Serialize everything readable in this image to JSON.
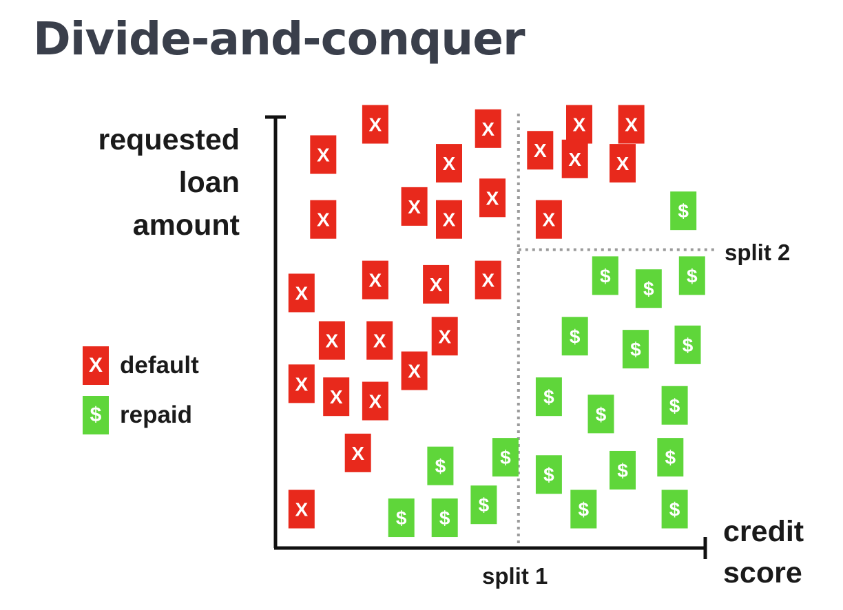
{
  "title": "Divide-and-conquer",
  "axes": {
    "y_label_lines": [
      "requested",
      "loan",
      "amount"
    ],
    "x_label_lines": [
      "credit",
      "score"
    ]
  },
  "splits": {
    "split1_label": "split 1",
    "split2_label": "split 2"
  },
  "legend": {
    "default": {
      "glyph": "X",
      "label": "default",
      "color": "#e8291c"
    },
    "repaid": {
      "glyph": "$",
      "label": "repaid",
      "color": "#5fd63a"
    }
  },
  "chart_data": {
    "type": "scatter",
    "xlim": [
      0,
      1
    ],
    "ylim": [
      0,
      1
    ],
    "split1_x": 0.56,
    "split2_y": 0.69,
    "categories": [
      "default",
      "repaid"
    ],
    "points": [
      {
        "c": "default",
        "x": 0.11,
        "y": 0.91
      },
      {
        "c": "default",
        "x": 0.23,
        "y": 0.98
      },
      {
        "c": "default",
        "x": 0.4,
        "y": 0.89
      },
      {
        "c": "default",
        "x": 0.49,
        "y": 0.97
      },
      {
        "c": "default",
        "x": 0.32,
        "y": 0.79
      },
      {
        "c": "default",
        "x": 0.4,
        "y": 0.76
      },
      {
        "c": "default",
        "x": 0.5,
        "y": 0.81
      },
      {
        "c": "default",
        "x": 0.11,
        "y": 0.76
      },
      {
        "c": "default",
        "x": 0.06,
        "y": 0.59
      },
      {
        "c": "default",
        "x": 0.23,
        "y": 0.62
      },
      {
        "c": "default",
        "x": 0.37,
        "y": 0.61
      },
      {
        "c": "default",
        "x": 0.49,
        "y": 0.62
      },
      {
        "c": "default",
        "x": 0.13,
        "y": 0.48
      },
      {
        "c": "default",
        "x": 0.24,
        "y": 0.48
      },
      {
        "c": "default",
        "x": 0.39,
        "y": 0.49
      },
      {
        "c": "default",
        "x": 0.32,
        "y": 0.41
      },
      {
        "c": "default",
        "x": 0.06,
        "y": 0.38
      },
      {
        "c": "default",
        "x": 0.14,
        "y": 0.35
      },
      {
        "c": "default",
        "x": 0.23,
        "y": 0.34
      },
      {
        "c": "default",
        "x": 0.19,
        "y": 0.22
      },
      {
        "c": "default",
        "x": 0.06,
        "y": 0.09
      },
      {
        "c": "default",
        "x": 0.61,
        "y": 0.92
      },
      {
        "c": "default",
        "x": 0.7,
        "y": 0.98
      },
      {
        "c": "default",
        "x": 0.82,
        "y": 0.98
      },
      {
        "c": "default",
        "x": 0.69,
        "y": 0.9
      },
      {
        "c": "default",
        "x": 0.8,
        "y": 0.89
      },
      {
        "c": "default",
        "x": 0.63,
        "y": 0.76
      },
      {
        "c": "repaid",
        "x": 0.94,
        "y": 0.78
      },
      {
        "c": "repaid",
        "x": 0.76,
        "y": 0.63
      },
      {
        "c": "repaid",
        "x": 0.86,
        "y": 0.6
      },
      {
        "c": "repaid",
        "x": 0.96,
        "y": 0.63
      },
      {
        "c": "repaid",
        "x": 0.69,
        "y": 0.49
      },
      {
        "c": "repaid",
        "x": 0.83,
        "y": 0.46
      },
      {
        "c": "repaid",
        "x": 0.95,
        "y": 0.47
      },
      {
        "c": "repaid",
        "x": 0.63,
        "y": 0.35
      },
      {
        "c": "repaid",
        "x": 0.75,
        "y": 0.31
      },
      {
        "c": "repaid",
        "x": 0.92,
        "y": 0.33
      },
      {
        "c": "repaid",
        "x": 0.38,
        "y": 0.19
      },
      {
        "c": "repaid",
        "x": 0.53,
        "y": 0.21
      },
      {
        "c": "repaid",
        "x": 0.63,
        "y": 0.17
      },
      {
        "c": "repaid",
        "x": 0.8,
        "y": 0.18
      },
      {
        "c": "repaid",
        "x": 0.91,
        "y": 0.21
      },
      {
        "c": "repaid",
        "x": 0.29,
        "y": 0.07
      },
      {
        "c": "repaid",
        "x": 0.39,
        "y": 0.07
      },
      {
        "c": "repaid",
        "x": 0.48,
        "y": 0.1
      },
      {
        "c": "repaid",
        "x": 0.71,
        "y": 0.09
      },
      {
        "c": "repaid",
        "x": 0.92,
        "y": 0.09
      }
    ]
  }
}
